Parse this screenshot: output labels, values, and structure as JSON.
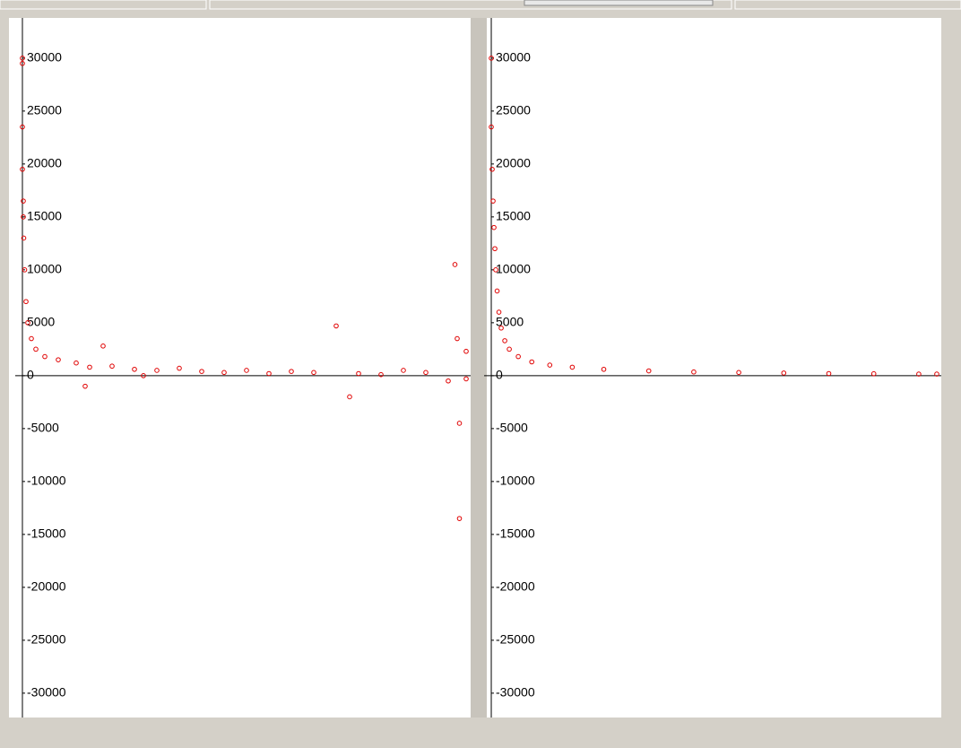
{
  "chart_data": [
    {
      "type": "scatter",
      "color": "#e00000",
      "xlim": [
        -1,
        100
      ],
      "ylim": [
        -32300,
        33800
      ],
      "yticks": [
        30000,
        25000,
        20000,
        15000,
        10000,
        5000,
        0,
        -5000,
        -10000,
        -15000,
        -20000,
        -25000,
        -30000
      ],
      "x": [
        0,
        0,
        0,
        0,
        0.2,
        0.2,
        0.3,
        0.5,
        0.8,
        1.2,
        2,
        3,
        5,
        8,
        12,
        14,
        15,
        18,
        20,
        25,
        27,
        30,
        35,
        40,
        45,
        50,
        55,
        60,
        65,
        70,
        73,
        75,
        80,
        85,
        90,
        95,
        96.5,
        97,
        97.5,
        97.5,
        99,
        99
      ],
      "values": [
        30000,
        29500,
        23500,
        19500,
        16500,
        15000,
        13000,
        10000,
        7000,
        5000,
        3500,
        2500,
        1800,
        1500,
        1200,
        -1000,
        800,
        2800,
        900,
        600,
        0,
        500,
        700,
        400,
        300,
        500,
        200,
        400,
        300,
        4700,
        -2000,
        200,
        100,
        500,
        300,
        -500,
        10500,
        3500,
        -4500,
        -13500,
        2300,
        -300
      ]
    },
    {
      "type": "scatter",
      "color": "#e00000",
      "xlim": [
        -1,
        100
      ],
      "ylim": [
        -32300,
        33800
      ],
      "yticks": [
        30000,
        25000,
        20000,
        15000,
        10000,
        5000,
        0,
        -5000,
        -10000,
        -15000,
        -20000,
        -25000,
        -30000
      ],
      "x": [
        0,
        0,
        0.2,
        0.4,
        0.6,
        0.8,
        1,
        1.3,
        1.7,
        2.2,
        3,
        4,
        6,
        9,
        13,
        18,
        25,
        35,
        45,
        55,
        65,
        75,
        85,
        95,
        99
      ],
      "values": [
        30000,
        23500,
        19500,
        16500,
        14000,
        12000,
        10000,
        8000,
        6000,
        4500,
        3300,
        2500,
        1800,
        1300,
        1000,
        800,
        600,
        450,
        350,
        300,
        250,
        200,
        180,
        150,
        150
      ]
    }
  ]
}
